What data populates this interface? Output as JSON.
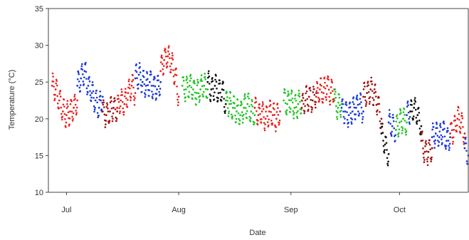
{
  "chart_data": {
    "type": "scatter",
    "title": "",
    "xlabel": "Date",
    "ylabel": "Temperature (°C)",
    "xlim": [
      "2015-06-26",
      "2015-10-20"
    ],
    "ylim": [
      10,
      35
    ],
    "yticks": [
      10,
      15,
      20,
      25,
      30,
      35
    ],
    "xticks": [
      {
        "date": "2015-07-01",
        "label": "Jul"
      },
      {
        "date": "2015-08-01",
        "label": "Aug"
      },
      {
        "date": "2015-09-01",
        "label": "Sep"
      },
      {
        "date": "2015-10-01",
        "label": "Oct"
      }
    ],
    "grid": false,
    "legend": "none",
    "colors": {
      "red": "#e8201c",
      "darkred": "#a01010",
      "blue": "#1a37d8",
      "green": "#1fc41f",
      "black": "#111111"
    },
    "segments": [
      {
        "color": "red",
        "dates": [
          "2015-06-27",
          "2015-06-28",
          "2015-06-29",
          "2015-06-30",
          "2015-07-01",
          "2015-07-02",
          "2015-07-03",
          "2015-07-04"
        ],
        "values": [
          24.5,
          24.0,
          22.5,
          21.0,
          20.5,
          21.0,
          21.5,
          22.5
        ]
      },
      {
        "color": "blue",
        "dates": [
          "2015-07-04",
          "2015-07-05",
          "2015-07-06",
          "2015-07-07",
          "2015-07-08",
          "2015-07-09",
          "2015-07-10",
          "2015-07-11"
        ],
        "values": [
          24.5,
          25.5,
          26.5,
          24.5,
          23.5,
          22.5,
          21.5,
          23.0
        ]
      },
      {
        "color": "darkred",
        "dates": [
          "2015-07-11",
          "2015-07-12",
          "2015-07-13",
          "2015-07-14",
          "2015-07-15"
        ],
        "values": [
          21.0,
          20.5,
          21.0,
          21.5,
          21.0
        ]
      },
      {
        "color": "red",
        "dates": [
          "2015-07-15",
          "2015-07-16",
          "2015-07-17",
          "2015-07-18",
          "2015-07-19",
          "2015-07-20"
        ],
        "values": [
          21.5,
          22.5,
          22.0,
          23.5,
          24.5,
          23.5
        ]
      },
      {
        "color": "blue",
        "dates": [
          "2015-07-20",
          "2015-07-21",
          "2015-07-22",
          "2015-07-23",
          "2015-07-24",
          "2015-07-25",
          "2015-07-26",
          "2015-07-27"
        ],
        "values": [
          25.5,
          26.0,
          25.0,
          24.5,
          25.0,
          24.5,
          24.0,
          25.0
        ]
      },
      {
        "color": "red",
        "dates": [
          "2015-07-27",
          "2015-07-28",
          "2015-07-29",
          "2015-07-30",
          "2015-07-31",
          "2015-08-01"
        ],
        "values": [
          26.5,
          28.0,
          28.5,
          27.5,
          26.0,
          23.0
        ]
      },
      {
        "color": "green",
        "dates": [
          "2015-08-02",
          "2015-08-03",
          "2015-08-04",
          "2015-08-05",
          "2015-08-06",
          "2015-08-07",
          "2015-08-08",
          "2015-08-09"
        ],
        "values": [
          24.5,
          24.0,
          24.5,
          24.0,
          23.5,
          24.0,
          24.5,
          24.0
        ]
      },
      {
        "color": "black",
        "dates": [
          "2015-08-09",
          "2015-08-10",
          "2015-08-11",
          "2015-08-12",
          "2015-08-13",
          "2015-08-14"
        ],
        "values": [
          25.0,
          24.0,
          24.5,
          23.5,
          24.0,
          22.0
        ]
      },
      {
        "color": "green",
        "dates": [
          "2015-08-14",
          "2015-08-15",
          "2015-08-16",
          "2015-08-17",
          "2015-08-18",
          "2015-08-19",
          "2015-08-20",
          "2015-08-21",
          "2015-08-22"
        ],
        "values": [
          22.5,
          22.0,
          21.5,
          21.0,
          20.5,
          21.5,
          22.0,
          21.0,
          20.5
        ]
      },
      {
        "color": "red",
        "dates": [
          "2015-08-22",
          "2015-08-23",
          "2015-08-24",
          "2015-08-25",
          "2015-08-26",
          "2015-08-27",
          "2015-08-28",
          "2015-08-29"
        ],
        "values": [
          21.5,
          20.5,
          21.0,
          20.0,
          21.0,
          20.5,
          20.0,
          21.0
        ]
      },
      {
        "color": "green",
        "dates": [
          "2015-08-30",
          "2015-08-31",
          "2015-09-01",
          "2015-09-02",
          "2015-09-03",
          "2015-09-04"
        ],
        "values": [
          22.5,
          22.0,
          22.5,
          21.5,
          22.0,
          22.5
        ]
      },
      {
        "color": "darkred",
        "dates": [
          "2015-09-04",
          "2015-09-05",
          "2015-09-06",
          "2015-09-07",
          "2015-09-08"
        ],
        "values": [
          21.5,
          22.5,
          23.0,
          22.5,
          23.5
        ]
      },
      {
        "color": "red",
        "dates": [
          "2015-09-08",
          "2015-09-09",
          "2015-09-10",
          "2015-09-11",
          "2015-09-12",
          "2015-09-13"
        ],
        "values": [
          23.0,
          24.0,
          23.5,
          24.5,
          23.5,
          24.0
        ]
      },
      {
        "color": "green",
        "dates": [
          "2015-09-13",
          "2015-09-14",
          "2015-09-15"
        ],
        "values": [
          22.5,
          21.5,
          22.0
        ]
      },
      {
        "color": "blue",
        "dates": [
          "2015-09-15",
          "2015-09-16",
          "2015-09-17",
          "2015-09-18",
          "2015-09-19",
          "2015-09-20",
          "2015-09-21"
        ],
        "values": [
          21.5,
          21.0,
          20.5,
          21.0,
          21.5,
          22.0,
          21.0
        ]
      },
      {
        "color": "darkred",
        "dates": [
          "2015-09-21",
          "2015-09-22",
          "2015-09-23",
          "2015-09-24",
          "2015-09-25",
          "2015-09-26"
        ],
        "values": [
          23.0,
          23.5,
          24.0,
          23.5,
          22.0,
          20.0
        ]
      },
      {
        "color": "black",
        "dates": [
          "2015-09-26",
          "2015-09-27",
          "2015-09-28"
        ],
        "values": [
          18.0,
          16.5,
          15.2
        ]
      },
      {
        "color": "blue",
        "dates": [
          "2015-09-28",
          "2015-09-29",
          "2015-09-30"
        ],
        "values": [
          19.5,
          19.0,
          18.5
        ]
      },
      {
        "color": "green",
        "dates": [
          "2015-09-30",
          "2015-10-01",
          "2015-10-02",
          "2015-10-03"
        ],
        "values": [
          18.5,
          19.5,
          20.0,
          19.5
        ]
      },
      {
        "color": "blue",
        "dates": [
          "2015-10-03",
          "2015-10-04"
        ],
        "values": [
          20.5,
          21.0
        ]
      },
      {
        "color": "black",
        "dates": [
          "2015-10-04",
          "2015-10-05",
          "2015-10-06",
          "2015-10-07"
        ],
        "values": [
          21.0,
          21.5,
          20.5,
          19.0
        ]
      },
      {
        "color": "darkred",
        "dates": [
          "2015-10-07",
          "2015-10-08",
          "2015-10-09",
          "2015-10-10"
        ],
        "values": [
          17.0,
          15.5,
          15.5,
          16.0
        ]
      },
      {
        "color": "blue",
        "dates": [
          "2015-10-10",
          "2015-10-11",
          "2015-10-12",
          "2015-10-13",
          "2015-10-14",
          "2015-10-15"
        ],
        "values": [
          17.5,
          18.0,
          17.5,
          18.5,
          17.0,
          17.5
        ]
      },
      {
        "color": "red",
        "dates": [
          "2015-10-15",
          "2015-10-16",
          "2015-10-17",
          "2015-10-18",
          "2015-10-19"
        ],
        "values": [
          18.0,
          18.5,
          20.0,
          19.5,
          18.0
        ]
      },
      {
        "color": "blue",
        "dates": [
          "2015-10-19",
          "2015-10-20"
        ],
        "values": [
          16.0,
          15.0
        ]
      }
    ]
  }
}
